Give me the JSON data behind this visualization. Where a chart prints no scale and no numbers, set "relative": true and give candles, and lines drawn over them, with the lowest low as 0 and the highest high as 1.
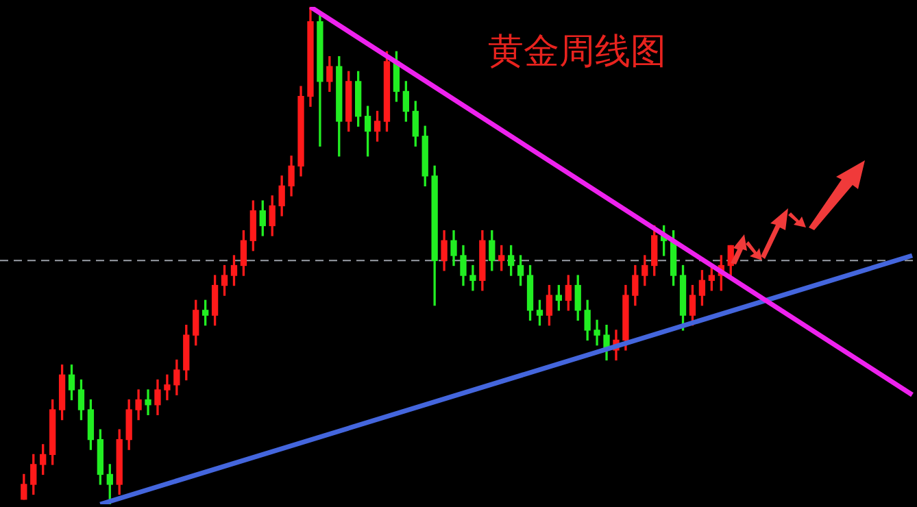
{
  "chart_data": {
    "type": "candlestick",
    "title": "黄金周线图",
    "relative": true,
    "legend": false,
    "categories": [
      null,
      null,
      null,
      null,
      null,
      null,
      null,
      null,
      null,
      null,
      null,
      null,
      null,
      null,
      null,
      null,
      null,
      null,
      null,
      null,
      null,
      null,
      null,
      null,
      null,
      null,
      null,
      null,
      null,
      null,
      null,
      null,
      null,
      null,
      null,
      null,
      null,
      null,
      null,
      null,
      null,
      null,
      null,
      null,
      null,
      null,
      null,
      null,
      null,
      null,
      null,
      null,
      null,
      null,
      null,
      null,
      null,
      null,
      null,
      null,
      null,
      null,
      null,
      null,
      null,
      null,
      null,
      null,
      null,
      null,
      null,
      null,
      null,
      null,
      null,
      null,
      null,
      null,
      null,
      null,
      null,
      null,
      null,
      null,
      null,
      null,
      null,
      null,
      null,
      null,
      null,
      null,
      null,
      null,
      null,
      null
    ],
    "ohlc": [
      null,
      null,
      [
        0.01,
        0.06,
        0.01,
        0.04
      ],
      [
        0.04,
        0.1,
        0.02,
        0.08
      ],
      [
        0.08,
        0.12,
        0.06,
        0.1
      ],
      [
        0.1,
        0.21,
        0.08,
        0.19
      ],
      [
        0.19,
        0.28,
        0.17,
        0.26
      ],
      [
        0.26,
        0.28,
        0.21,
        0.23
      ],
      [
        0.23,
        0.25,
        0.17,
        0.19
      ],
      [
        0.19,
        0.21,
        0.11,
        0.13
      ],
      [
        0.13,
        0.15,
        0.04,
        0.06
      ],
      [
        0.06,
        0.08,
        0.0,
        0.04
      ],
      [
        0.04,
        0.15,
        0.02,
        0.13
      ],
      [
        0.13,
        0.21,
        0.11,
        0.19
      ],
      [
        0.19,
        0.23,
        0.17,
        0.21
      ],
      [
        0.21,
        0.23,
        0.18,
        0.2
      ],
      [
        0.2,
        0.25,
        0.18,
        0.23
      ],
      [
        0.23,
        0.26,
        0.21,
        0.24
      ],
      [
        0.24,
        0.29,
        0.22,
        0.27
      ],
      [
        0.27,
        0.36,
        0.25,
        0.34
      ],
      [
        0.34,
        0.41,
        0.32,
        0.39
      ],
      [
        0.39,
        0.41,
        0.36,
        0.38
      ],
      [
        0.38,
        0.46,
        0.36,
        0.44
      ],
      [
        0.44,
        0.48,
        0.42,
        0.46
      ],
      [
        0.46,
        0.5,
        0.44,
        0.48
      ],
      [
        0.48,
        0.55,
        0.46,
        0.53
      ],
      [
        0.53,
        0.61,
        0.51,
        0.59
      ],
      [
        0.59,
        0.61,
        0.54,
        0.56
      ],
      [
        0.56,
        0.62,
        0.54,
        0.6
      ],
      [
        0.6,
        0.66,
        0.58,
        0.64
      ],
      [
        0.64,
        0.7,
        0.62,
        0.68
      ],
      [
        0.68,
        0.84,
        0.66,
        0.82
      ],
      [
        0.82,
        1.0,
        0.8,
        0.97
      ],
      [
        0.97,
        0.99,
        0.72,
        0.85
      ],
      [
        0.85,
        0.9,
        0.83,
        0.88
      ],
      [
        0.88,
        0.9,
        0.7,
        0.77
      ],
      [
        0.77,
        0.87,
        0.75,
        0.85
      ],
      [
        0.85,
        0.87,
        0.76,
        0.78
      ],
      [
        0.78,
        0.8,
        0.7,
        0.75
      ],
      [
        0.75,
        0.79,
        0.73,
        0.77
      ],
      [
        0.77,
        0.91,
        0.75,
        0.89
      ],
      [
        0.89,
        0.91,
        0.81,
        0.83
      ],
      [
        0.83,
        0.85,
        0.77,
        0.79
      ],
      [
        0.79,
        0.81,
        0.72,
        0.74
      ],
      [
        0.74,
        0.76,
        0.64,
        0.66
      ],
      [
        0.66,
        0.68,
        0.4,
        0.49
      ],
      [
        0.49,
        0.55,
        0.47,
        0.53
      ],
      [
        0.53,
        0.55,
        0.48,
        0.5
      ],
      [
        0.5,
        0.52,
        0.44,
        0.46
      ],
      [
        0.46,
        0.48,
        0.43,
        0.45
      ],
      [
        0.45,
        0.55,
        0.43,
        0.53
      ],
      [
        0.53,
        0.55,
        0.47,
        0.49
      ],
      [
        0.49,
        0.52,
        0.47,
        0.5
      ],
      [
        0.5,
        0.52,
        0.46,
        0.48
      ],
      [
        0.48,
        0.5,
        0.44,
        0.46
      ],
      [
        0.46,
        0.48,
        0.37,
        0.39
      ],
      [
        0.39,
        0.41,
        0.36,
        0.38
      ],
      [
        0.38,
        0.44,
        0.36,
        0.42
      ],
      [
        0.42,
        0.44,
        0.39,
        0.41
      ],
      [
        0.41,
        0.46,
        0.39,
        0.44
      ],
      [
        0.44,
        0.46,
        0.37,
        0.39
      ],
      [
        0.39,
        0.41,
        0.33,
        0.35
      ],
      [
        0.35,
        0.37,
        0.32,
        0.34
      ],
      [
        0.34,
        0.36,
        0.29,
        0.31
      ],
      [
        0.31,
        0.35,
        0.29,
        0.33
      ],
      [
        0.33,
        0.44,
        0.31,
        0.42
      ],
      [
        0.42,
        0.48,
        0.4,
        0.46
      ],
      [
        0.46,
        0.5,
        0.44,
        0.48
      ],
      [
        0.48,
        0.56,
        0.46,
        0.54
      ],
      [
        0.54,
        0.56,
        0.5,
        0.53
      ],
      [
        0.53,
        0.55,
        0.44,
        0.46
      ],
      [
        0.46,
        0.48,
        0.35,
        0.38
      ],
      [
        0.38,
        0.44,
        0.36,
        0.42
      ],
      [
        0.42,
        0.47,
        0.4,
        0.45
      ],
      [
        0.45,
        0.48,
        0.43,
        0.46
      ],
      [
        0.46,
        0.5,
        0.43,
        0.48
      ],
      [
        0.48,
        0.52,
        0.46,
        0.52
      ],
      null,
      null,
      null,
      null,
      null,
      null,
      null,
      null,
      null,
      null,
      null,
      null,
      null,
      null,
      null,
      null,
      null,
      null,
      null
    ],
    "series": [
      {
        "type": "line",
        "color": "#ee22ee",
        "values": [
          null,
          null,
          null,
          null,
          null,
          null,
          null,
          null,
          null,
          null,
          null,
          null,
          null,
          null,
          null,
          null,
          null,
          null,
          null,
          null,
          null,
          null,
          null,
          null,
          null,
          null,
          null,
          null,
          null,
          null,
          null,
          null,
          1.0,
          null,
          null,
          null,
          null,
          null,
          null,
          null,
          null,
          null,
          null,
          null,
          null,
          null,
          null,
          null,
          null,
          null,
          null,
          null,
          null,
          null,
          null,
          null,
          null,
          null,
          null,
          null,
          null,
          null,
          null,
          null,
          null,
          null,
          null,
          null,
          null,
          null,
          null,
          null,
          null,
          null,
          null,
          null,
          null,
          null,
          null,
          null,
          null,
          null,
          null,
          null,
          null,
          null,
          null,
          null,
          null,
          null,
          null,
          null,
          null,
          null,
          null,
          0.22
        ]
      },
      {
        "type": "line",
        "color": "#4466dd",
        "values": [
          null,
          null,
          null,
          null,
          null,
          null,
          null,
          null,
          null,
          null,
          0.0,
          null,
          null,
          null,
          null,
          null,
          null,
          null,
          null,
          null,
          null,
          null,
          null,
          null,
          null,
          null,
          null,
          null,
          null,
          null,
          null,
          null,
          null,
          null,
          null,
          null,
          null,
          null,
          null,
          null,
          null,
          null,
          null,
          null,
          null,
          null,
          null,
          null,
          null,
          null,
          null,
          null,
          null,
          null,
          null,
          null,
          null,
          null,
          null,
          null,
          null,
          null,
          null,
          null,
          null,
          null,
          null,
          null,
          null,
          null,
          null,
          null,
          null,
          null,
          null,
          null,
          null,
          null,
          null,
          null,
          null,
          null,
          null,
          null,
          null,
          null,
          null,
          null,
          null,
          null,
          null,
          null,
          null,
          null,
          null,
          0.5
        ]
      }
    ],
    "ref_lines": [
      {
        "axis": "y",
        "value": 0.49,
        "color": "#9aa0a8",
        "line_style": "dashed"
      }
    ]
  }
}
